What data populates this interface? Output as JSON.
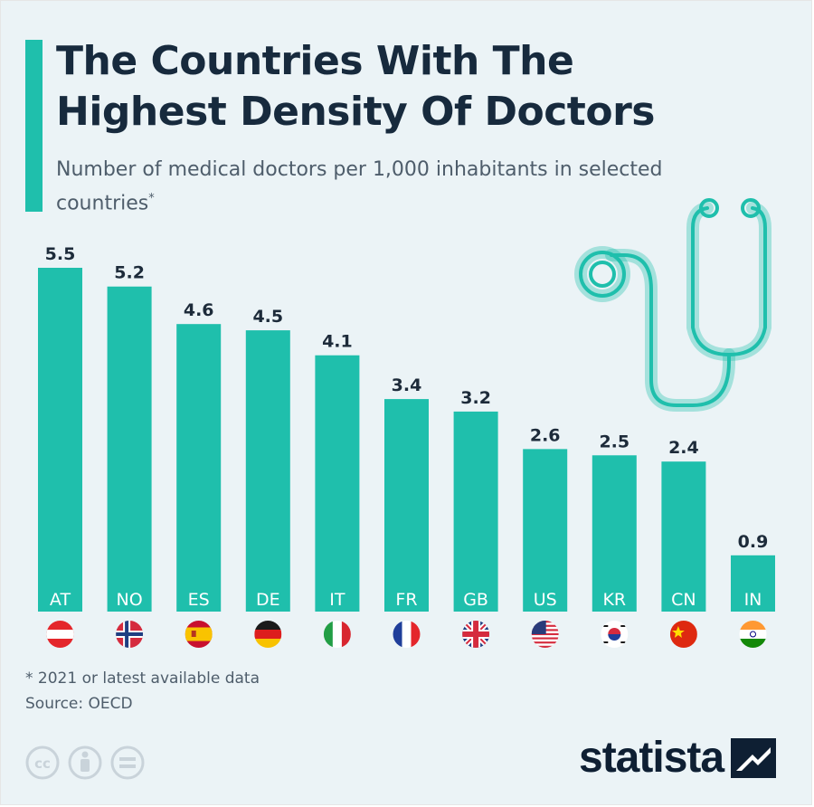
{
  "title": "The Countries With The Highest Density Of Doctors",
  "subtitle": "Number of medical doctors per 1,000 inhabitants in selected countries",
  "subtitle_mark": "*",
  "footnote": "* 2021 or latest available data",
  "source": "Source: OECD",
  "logo_text": "statista",
  "colors": {
    "bar": "#1fbfac",
    "title": "#172a3d",
    "background": "#ebf3f6",
    "value_label": "#1d2b3a"
  },
  "chart_data": {
    "type": "bar",
    "title": "The Countries With The Highest Density Of Doctors",
    "subtitle": "Number of medical doctors per 1,000 inhabitants in selected countries",
    "categories": [
      "AT",
      "NO",
      "ES",
      "DE",
      "IT",
      "FR",
      "GB",
      "US",
      "KR",
      "CN",
      "IN"
    ],
    "values": [
      5.5,
      5.2,
      4.6,
      4.5,
      4.1,
      3.4,
      3.2,
      2.6,
      2.5,
      2.4,
      0.9
    ],
    "ylim": [
      0,
      5.5
    ],
    "xlabel": "",
    "ylabel": "",
    "grid": false,
    "flags": [
      "austria-flag",
      "norway-flag",
      "spain-flag",
      "germany-flag",
      "italy-flag",
      "france-flag",
      "uk-flag",
      "usa-flag",
      "south-korea-flag",
      "china-flag",
      "india-flag"
    ]
  }
}
